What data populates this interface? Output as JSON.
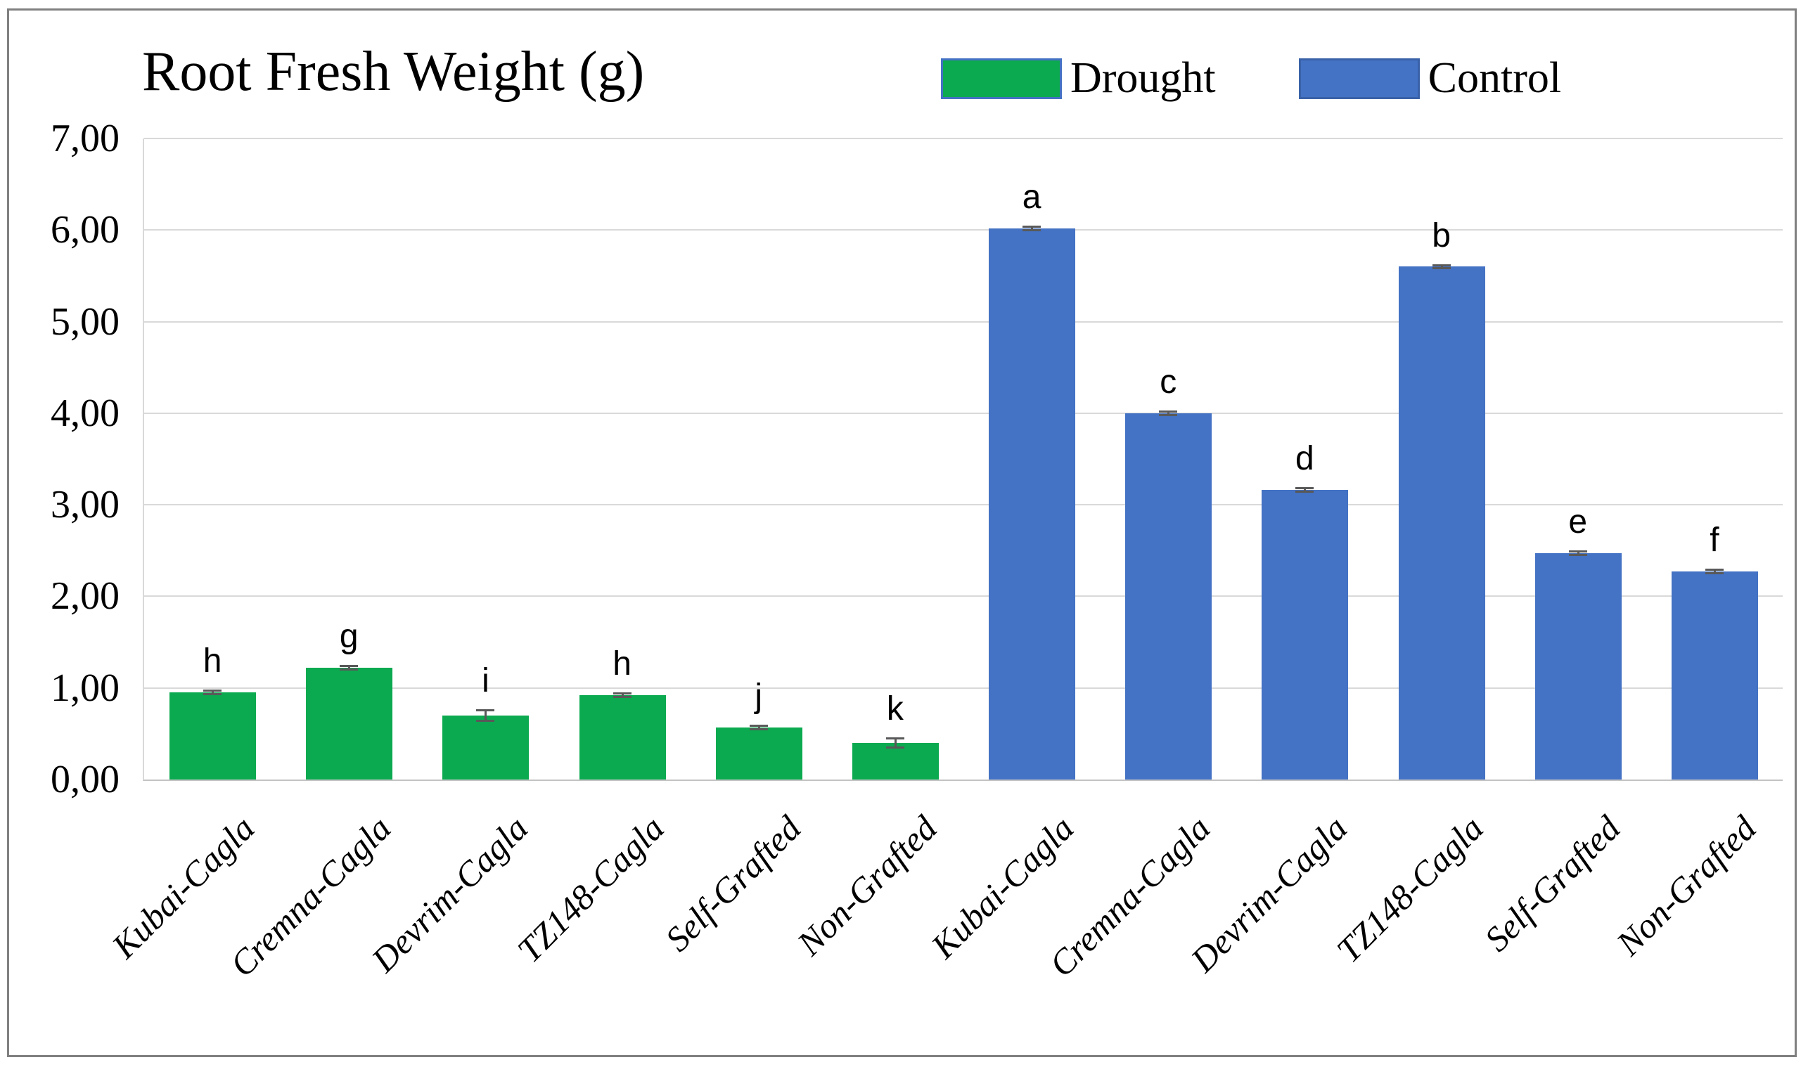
{
  "figure": {
    "title": "Root Fresh Weight (g)"
  },
  "legend": {
    "items": [
      {
        "label": "Drought",
        "color": "#0caa50",
        "border": "#4472c4"
      },
      {
        "label": "Control",
        "color": "#4472c4",
        "border": "#3a62a8"
      }
    ]
  },
  "chart_data": {
    "type": "bar",
    "title": "Root Fresh Weight (g)",
    "xlabel": "",
    "ylabel": "",
    "ylim": [
      0,
      7
    ],
    "ytick_step": 1,
    "ytick_labels": [
      "0,00",
      "1,00",
      "2,00",
      "3,00",
      "4,00",
      "5,00",
      "6,00",
      "7,00"
    ],
    "decimal_separator": "comma",
    "grid": true,
    "gridline_color": "#d9d9d9",
    "error_bar_color": "#595959",
    "legend_position": "top",
    "categories": [
      "Kubai-Cagla",
      "Cremna-Cagla",
      "Devrim-Cagla",
      "TZ148-Cagla",
      "Self-Grafted",
      "Non-Grafted"
    ],
    "series": [
      {
        "name": "Drought",
        "color": "#0caa50",
        "values": [
          0.95,
          1.22,
          0.7,
          0.92,
          0.57,
          0.4
        ],
        "errors": [
          0.03,
          0.03,
          0.07,
          0.03,
          0.03,
          0.06
        ],
        "letters": [
          "h",
          "g",
          "i",
          "h",
          "j",
          "k"
        ]
      },
      {
        "name": "Control",
        "color": "#4472c4",
        "values": [
          6.02,
          4.0,
          3.16,
          5.6,
          2.47,
          2.27
        ],
        "errors": [
          0.03,
          0.03,
          0.03,
          0.03,
          0.03,
          0.03
        ],
        "letters": [
          "a",
          "c",
          "d",
          "b",
          "e",
          "f"
        ]
      }
    ],
    "layout_note": "12 bars total: 6 Drought bars on the left followed by 6 Control bars, category labels repeated under each group, rotated 45 degrees"
  }
}
